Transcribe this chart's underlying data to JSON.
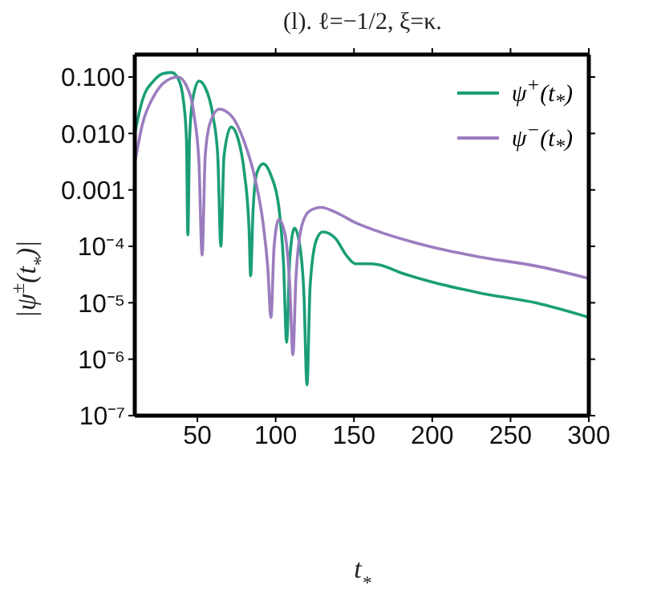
{
  "chart_data": {
    "type": "line",
    "title": "(l). ℓ=−1/2, ξ=κ.",
    "xlabel": "t$_{*}$",
    "ylabel": "|ψ$^{±}$(t$_{*}$)|",
    "log": "y",
    "legend": "top right",
    "marker": "none",
    "line_style": "solid",
    "xlim": [
      10,
      300
    ],
    "xticks": [
      50,
      100,
      150,
      200,
      250,
      300
    ],
    "ylim": [
      1e-07,
      0.25
    ],
    "yticks": [
      {
        "value": 0.1,
        "label": "0.100"
      },
      {
        "value": 0.01,
        "label": "0.010"
      },
      {
        "value": 0.001,
        "label": "0.001"
      },
      {
        "value": 0.0001,
        "label": "10⁻⁴"
      },
      {
        "value": 1e-05,
        "label": "10⁻⁵"
      },
      {
        "value": 1e-06,
        "label": "10⁻⁶"
      },
      {
        "value": 1e-07,
        "label": "10⁻⁷"
      }
    ],
    "series": [
      {
        "name": "ψ$^{+}$(t$_{*}$)",
        "color": "#1b9e77",
        "x": [
          10,
          15,
          22,
          28,
          33.6,
          38,
          41,
          43,
          43.9,
          45,
          47,
          51,
          55,
          60,
          63,
          65,
          67,
          71.5,
          76,
          80,
          83,
          84,
          85.5,
          88,
          92,
          97,
          102,
          105,
          107,
          109,
          112,
          115,
          118,
          120,
          122,
          126,
          130,
          138,
          145,
          151,
          160,
          166,
          180,
          198,
          230,
          266,
          300
        ],
        "values": [
          0.01,
          0.04,
          0.085,
          0.115,
          0.12,
          0.09,
          0.04,
          0.008,
          0.00016,
          0.008,
          0.04,
          0.085,
          0.065,
          0.02,
          0.004,
          0.0001,
          0.004,
          0.013,
          0.008,
          0.002,
          0.0002,
          3e-05,
          0.0004,
          0.002,
          0.0029,
          0.0018,
          0.0005,
          5e-05,
          2e-06,
          6e-05,
          0.00021,
          0.00012,
          1.5e-05,
          3.5e-07,
          2e-05,
          0.00013,
          0.00018,
          0.00014,
          7e-05,
          4.9e-05,
          4.9e-05,
          4.7e-05,
          3.4e-05,
          2.4e-05,
          1.5e-05,
          1e-05,
          5.5e-06
        ]
      },
      {
        "name": "ψ$^{−}$(t$_{*}$)",
        "color": "#9b7dbf",
        "x": [
          10,
          15,
          22,
          30,
          37.7,
          43,
          48,
          51,
          53,
          55,
          58,
          64,
          72,
          80,
          87,
          92,
          95,
          97,
          99,
          102,
          106,
          109,
          111,
          113,
          117,
          122,
          129,
          140,
          150,
          164,
          198,
          230,
          266,
          300
        ],
        "values": [
          0.003,
          0.015,
          0.045,
          0.085,
          0.1,
          0.07,
          0.02,
          0.003,
          7e-05,
          0.004,
          0.015,
          0.027,
          0.02,
          0.007,
          0.0015,
          0.00025,
          4e-05,
          5.5e-06,
          0.0001,
          0.0003,
          0.00016,
          2e-05,
          1.2e-06,
          3e-05,
          0.00025,
          0.00043,
          0.00049,
          0.00038,
          0.00027,
          0.00019,
          0.0001,
          6.5e-05,
          4.5e-05,
          2.7e-05
        ]
      }
    ]
  }
}
